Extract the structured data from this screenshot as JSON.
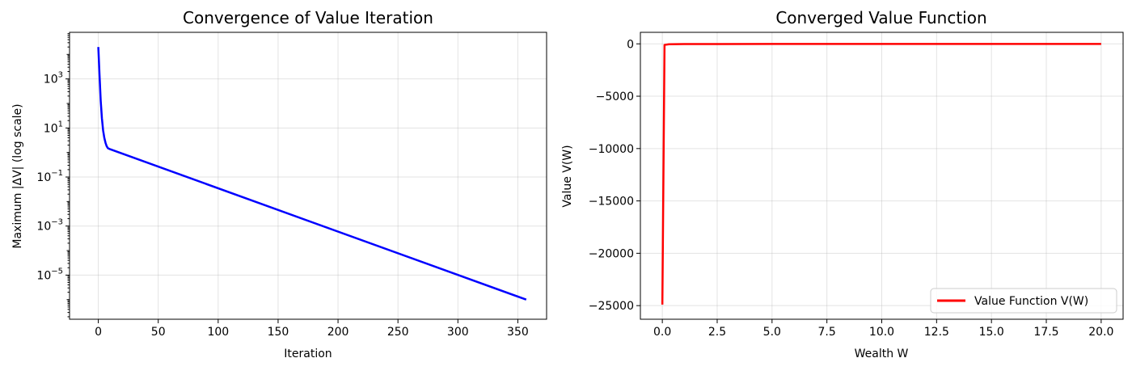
{
  "chart_data": [
    {
      "type": "line",
      "title": "Convergence of Value Iteration",
      "xlabel": "Iteration",
      "ylabel": "Maximum |ΔV| (log scale)",
      "xlim": [
        -24,
        374
      ],
      "ylim_log10": [
        -6.8,
        4.9
      ],
      "yscale": "log",
      "grid": true,
      "xticks": [
        0,
        50,
        100,
        150,
        200,
        250,
        300,
        350
      ],
      "yticks_exp": [
        3,
        1,
        -1,
        -3,
        -5
      ],
      "yticks_base": "10",
      "yticks_exp_labels": [
        "3",
        "1",
        "−1",
        "−3",
        "−5"
      ],
      "series": [
        {
          "color": "#0000ff",
          "points": [
            [
              0,
              20000
            ],
            [
              1,
              1500
            ],
            [
              2,
              130
            ],
            [
              3,
              25
            ],
            [
              4,
              8
            ],
            [
              5,
              4
            ],
            [
              6,
              2.5
            ],
            [
              7,
              1.8
            ],
            [
              8,
              1.5
            ],
            [
              10,
              1.35
            ],
            [
              357,
              1e-06
            ]
          ]
        }
      ]
    },
    {
      "type": "line",
      "title": "Converged Value Function",
      "xlabel": "Wealth W",
      "ylabel": "Value V(W)",
      "xlim": [
        -1,
        21
      ],
      "ylim": [
        -26300,
        1100
      ],
      "grid": true,
      "xticks": [
        0,
        2.5,
        5,
        7.5,
        10,
        12.5,
        15,
        17.5,
        20
      ],
      "xtick_labels": [
        "0.0",
        "2.5",
        "5.0",
        "7.5",
        "10.0",
        "12.5",
        "15.0",
        "17.5",
        "20.0"
      ],
      "yticks": [
        0,
        -5000,
        -10000,
        -15000,
        -20000,
        -25000
      ],
      "ytick_labels": [
        "0",
        "−5000",
        "−10000",
        "−15000",
        "−20000",
        "−25000"
      ],
      "legend_position": "lower-right",
      "series": [
        {
          "name": "Value Function V(W)",
          "color": "#ff0000",
          "points": [
            [
              0.001,
              -24900
            ],
            [
              0.1,
              -100
            ],
            [
              0.3,
              -40
            ],
            [
              1,
              -20
            ],
            [
              5,
              -10
            ],
            [
              10,
              -7
            ],
            [
              20,
              -5
            ]
          ]
        }
      ]
    }
  ]
}
